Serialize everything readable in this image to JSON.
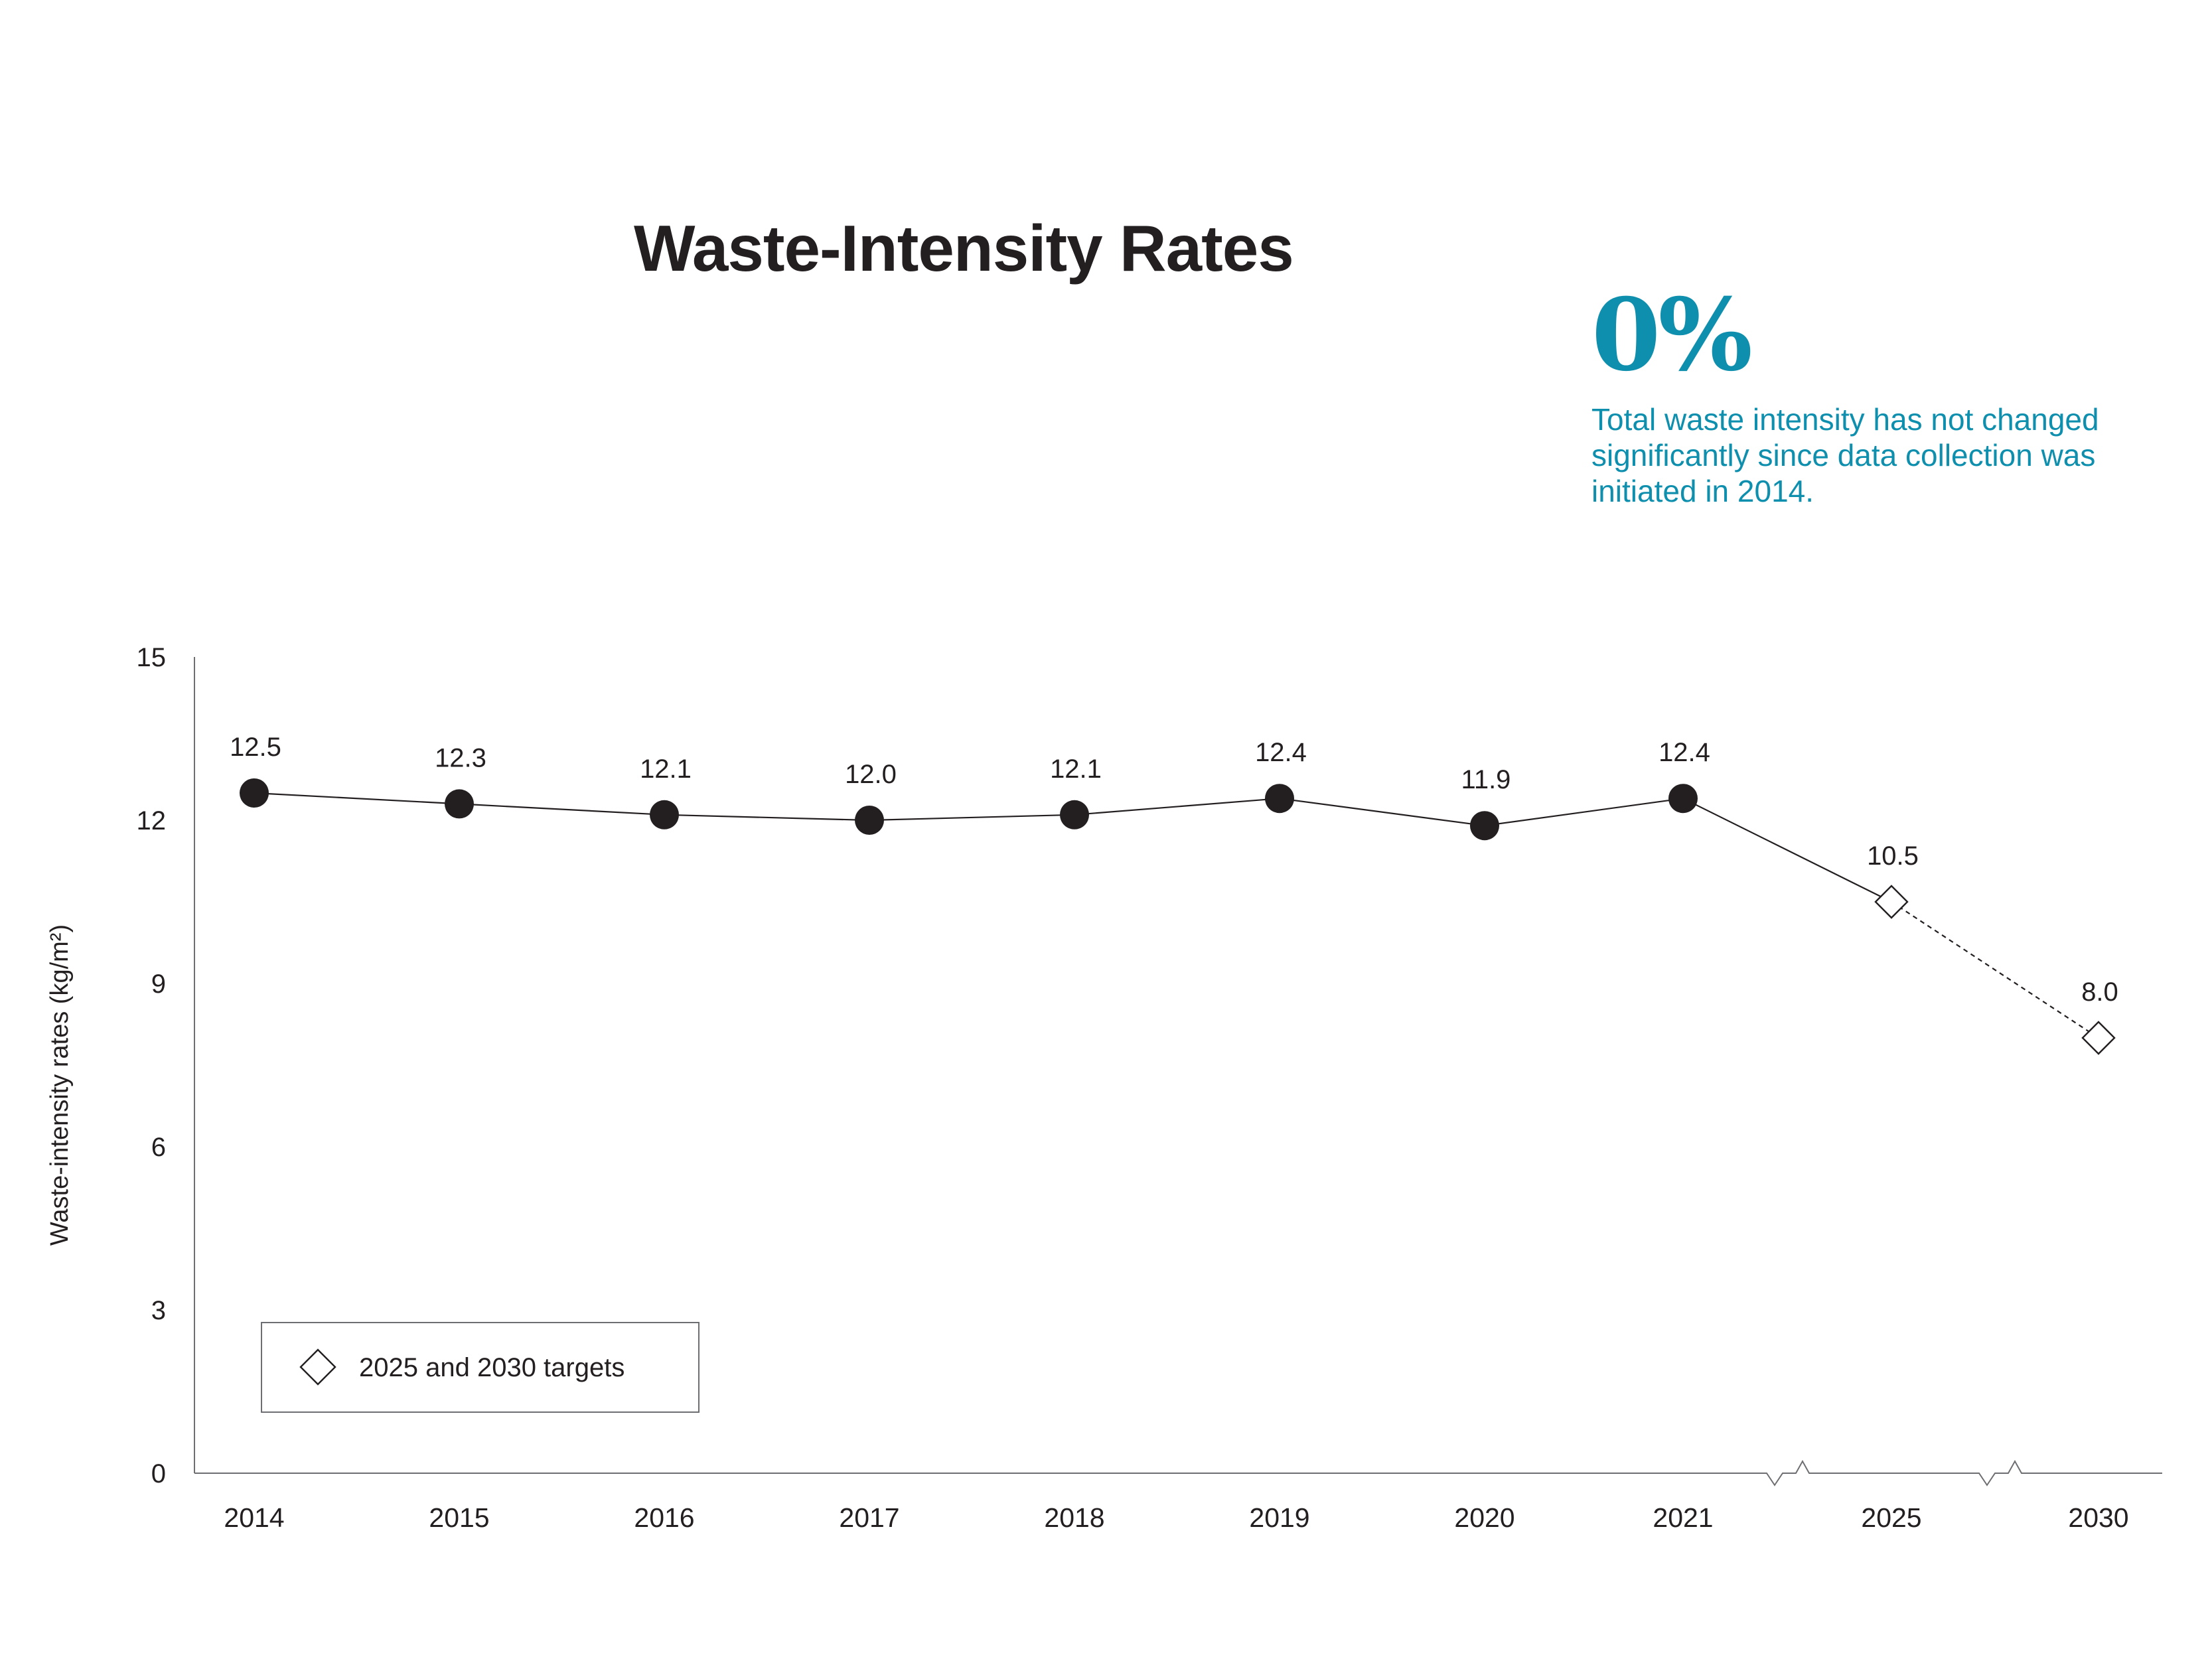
{
  "chart_data": {
    "type": "line",
    "title": "Waste-Intensity Rates",
    "xlabel": "",
    "ylabel": "Waste-intensity rates (kg/m²)",
    "ylim": [
      0,
      15
    ],
    "yticks": [
      "0",
      "3",
      "6",
      "9",
      "12",
      "15"
    ],
    "categories": [
      "2014",
      "2015",
      "2016",
      "2017",
      "2018",
      "2019",
      "2020",
      "2021",
      "2025",
      "2030"
    ],
    "values": [
      12.5,
      12.3,
      12.1,
      12.0,
      12.1,
      12.4,
      11.9,
      12.4,
      10.5,
      8.0
    ],
    "value_labels": [
      "12.5",
      "12.3",
      "12.1",
      "12.0",
      "12.1",
      "12.4",
      "11.9",
      "12.4",
      "10.5",
      "8.0"
    ],
    "target_indices": [
      8,
      9
    ],
    "axis_breaks": [
      "between 2021 and 2025",
      "between 2025 and 2030"
    ],
    "legend": {
      "placement": "bottom-left",
      "entries": [
        {
          "label": "2025 and 2030 targets",
          "marker": "diamond-icon"
        }
      ]
    },
    "grid": false
  },
  "callout": {
    "value": "0%",
    "text": "Total waste intensity has not changed significantly since data collection was initiated in 2014."
  },
  "colors": {
    "ink": "#231f20",
    "accent": "#0f8fae",
    "axis": "#6d6e71"
  }
}
